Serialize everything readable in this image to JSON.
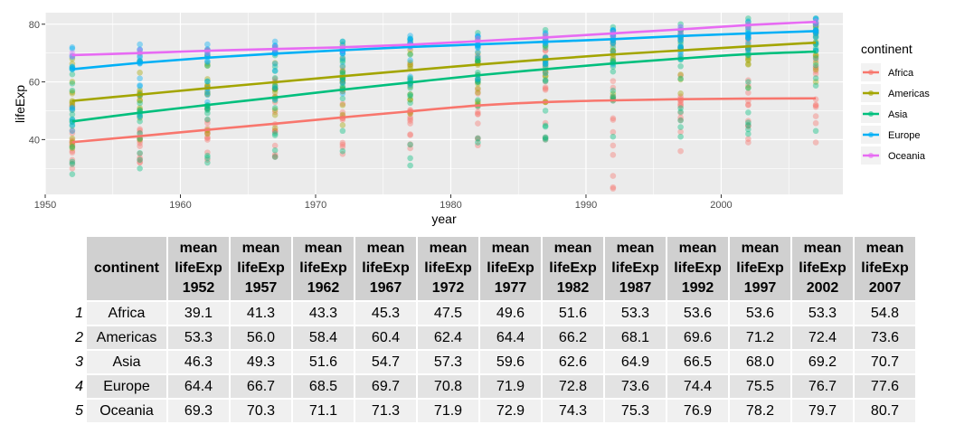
{
  "chart_data": {
    "type": "scatter",
    "xlabel": "year",
    "ylabel": "lifeExp",
    "xlim": [
      1950,
      2009
    ],
    "ylim": [
      21,
      84
    ],
    "x_ticks": [
      1950,
      1960,
      1970,
      1980,
      1990,
      2000
    ],
    "y_ticks": [
      40,
      60,
      80
    ],
    "grid": true,
    "legend": {
      "title": "continent",
      "position": "right"
    },
    "years": [
      1952,
      1957,
      1962,
      1967,
      1972,
      1977,
      1982,
      1987,
      1992,
      1997,
      2002,
      2007
    ],
    "series": [
      {
        "name": "Africa",
        "color": "#F8766D",
        "mean_lifeExp": [
          39.1,
          41.3,
          43.3,
          45.3,
          47.5,
          49.6,
          51.6,
          53.3,
          53.6,
          53.6,
          53.3,
          54.8
        ],
        "smooth": [
          39.1,
          41.2,
          43.4,
          45.5,
          47.7,
          49.8,
          51.8,
          53.0,
          53.6,
          54.0,
          54.2,
          54.3
        ],
        "range": [
          [
            30,
            52
          ],
          [
            32,
            55
          ],
          [
            33,
            58
          ],
          [
            34,
            61
          ],
          [
            35,
            64
          ],
          [
            37,
            66
          ],
          [
            38,
            69
          ],
          [
            40,
            71
          ],
          [
            23,
            73
          ],
          [
            36,
            75
          ],
          [
            39,
            76
          ],
          [
            39,
            77
          ]
        ]
      },
      {
        "name": "Americas",
        "color": "#A3A500",
        "mean_lifeExp": [
          53.3,
          56.0,
          58.4,
          60.4,
          62.4,
          64.4,
          66.2,
          68.1,
          69.6,
          71.2,
          72.4,
          73.6
        ],
        "smooth": [
          53.4,
          55.6,
          57.8,
          59.9,
          62.0,
          64.0,
          66.0,
          67.8,
          69.5,
          70.9,
          72.3,
          73.6
        ],
        "range": [
          [
            37,
            68
          ],
          [
            40,
            70
          ],
          [
            42,
            71
          ],
          [
            44,
            72
          ],
          [
            45,
            73
          ],
          [
            49,
            74
          ],
          [
            52,
            75
          ],
          [
            53,
            76
          ],
          [
            54,
            77
          ],
          [
            56,
            78
          ],
          [
            58,
            79
          ],
          [
            60,
            80
          ]
        ]
      },
      {
        "name": "Asia",
        "color": "#00BF7D",
        "mean_lifeExp": [
          46.3,
          49.3,
          51.6,
          54.7,
          57.3,
          59.6,
          62.6,
          64.9,
          66.5,
          68.0,
          69.2,
          70.7
        ],
        "smooth": [
          46.3,
          49.3,
          52.0,
          54.6,
          57.3,
          59.8,
          62.3,
          64.4,
          66.4,
          68.1,
          69.6,
          70.5
        ],
        "range": [
          [
            28,
            65
          ],
          [
            30,
            67
          ],
          [
            32,
            69
          ],
          [
            34,
            71
          ],
          [
            36,
            74
          ],
          [
            31,
            75
          ],
          [
            39,
            77
          ],
          [
            40,
            78
          ],
          [
            41,
            79
          ],
          [
            41,
            80
          ],
          [
            42,
            82
          ],
          [
            43,
            82
          ]
        ]
      },
      {
        "name": "Europe",
        "color": "#00B0F6",
        "mean_lifeExp": [
          64.4,
          66.7,
          68.5,
          69.7,
          70.8,
          71.9,
          72.8,
          73.6,
          74.4,
          75.5,
          76.7,
          77.6
        ],
        "smooth": [
          64.4,
          66.6,
          68.4,
          69.8,
          71.0,
          72.1,
          73.0,
          73.9,
          74.8,
          75.9,
          76.8,
          77.6
        ],
        "range": [
          [
            43,
            72
          ],
          [
            48,
            73
          ],
          [
            53,
            73
          ],
          [
            54,
            74
          ],
          [
            56,
            74
          ],
          [
            59,
            76
          ],
          [
            61,
            76
          ],
          [
            63,
            77
          ],
          [
            66,
            78
          ],
          [
            68,
            79
          ],
          [
            70,
            81
          ],
          [
            71,
            82
          ]
        ]
      },
      {
        "name": "Oceania",
        "color": "#E76BF3",
        "mean_lifeExp": [
          69.3,
          70.3,
          71.1,
          71.3,
          71.9,
          72.9,
          74.3,
          75.3,
          76.9,
          78.2,
          79.7,
          80.7
        ],
        "smooth": [
          69.3,
          70.0,
          70.8,
          71.4,
          72.0,
          72.9,
          74.1,
          75.4,
          76.8,
          78.2,
          79.7,
          80.8
        ],
        "range": [
          [
            69,
            70
          ],
          [
            70,
            71
          ],
          [
            70,
            71
          ],
          [
            71,
            72
          ],
          [
            71,
            72
          ],
          [
            72,
            73
          ],
          [
            74,
            75
          ],
          [
            75,
            76
          ],
          [
            76,
            77
          ],
          [
            77,
            79
          ],
          [
            79,
            80
          ],
          [
            80,
            81
          ]
        ]
      }
    ]
  },
  "table": {
    "header_word1": "mean",
    "header_word2": "lifeExp",
    "columns": [
      "continent",
      "1952",
      "1957",
      "1962",
      "1967",
      "1972",
      "1977",
      "1982",
      "1987",
      "1992",
      "1997",
      "2002",
      "2007"
    ],
    "rows": [
      {
        "index": "1",
        "continent": "Africa",
        "values": [
          "39.1",
          "41.3",
          "43.3",
          "45.3",
          "47.5",
          "49.6",
          "51.6",
          "53.3",
          "53.6",
          "53.6",
          "53.3",
          "54.8"
        ]
      },
      {
        "index": "2",
        "continent": "Americas",
        "values": [
          "53.3",
          "56.0",
          "58.4",
          "60.4",
          "62.4",
          "64.4",
          "66.2",
          "68.1",
          "69.6",
          "71.2",
          "72.4",
          "73.6"
        ]
      },
      {
        "index": "3",
        "continent": "Asia",
        "values": [
          "46.3",
          "49.3",
          "51.6",
          "54.7",
          "57.3",
          "59.6",
          "62.6",
          "64.9",
          "66.5",
          "68.0",
          "69.2",
          "70.7"
        ]
      },
      {
        "index": "4",
        "continent": "Europe",
        "values": [
          "64.4",
          "66.7",
          "68.5",
          "69.7",
          "70.8",
          "71.9",
          "72.8",
          "73.6",
          "74.4",
          "75.5",
          "76.7",
          "77.6"
        ]
      },
      {
        "index": "5",
        "continent": "Oceania",
        "values": [
          "69.3",
          "70.3",
          "71.1",
          "71.3",
          "71.9",
          "72.9",
          "74.3",
          "75.3",
          "76.9",
          "78.2",
          "79.7",
          "80.7"
        ]
      }
    ]
  }
}
